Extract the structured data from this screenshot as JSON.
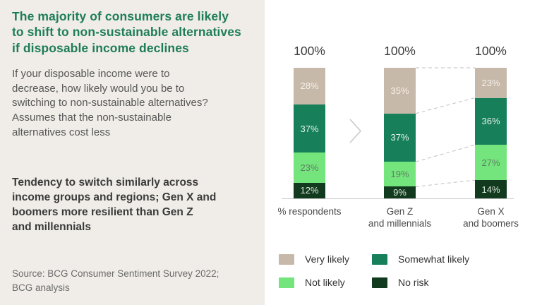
{
  "left_panel": {
    "title": "The majority of consumers are likely\nto shift to non-sustainable alternatives\nif disposable income declines",
    "description": "If your disposable income were to\ndecrease, how likely would you be to\nswitching to non-sustainable alternatives?\nAssumes that the non-sustainable\nalternatives cost less",
    "highlight": "Tendency to switch similarly across\nincome groups and regions; Gen X and\nboomers more resilient than Gen Z\nand millennials",
    "source": "Source: BCG Consumer Sentiment Survey 2022;\nBCG analysis"
  },
  "chart_data": {
    "type": "bar",
    "stacked": true,
    "unit": "%",
    "total_label": "100%",
    "categories": [
      "% respondents",
      "Gen Z\nand millennials",
      "Gen X\nand boomers"
    ],
    "series": [
      {
        "name": "Very likely",
        "color": "#C7B9A9",
        "label_color": "#F5F0E9",
        "values": [
          28,
          35,
          23
        ]
      },
      {
        "name": "Somewhat likely",
        "color": "#17805B",
        "label_color": "#E6F1EA",
        "values": [
          37,
          37,
          36
        ]
      },
      {
        "name": "Not likely",
        "color": "#74E57C",
        "label_color": "#5F7F68",
        "values": [
          23,
          19,
          27
        ]
      },
      {
        "name": "No risk",
        "color": "#123A1E",
        "label_color": "#DCE8DD",
        "values": [
          12,
          9,
          14
        ]
      }
    ],
    "ylim": [
      0,
      100
    ],
    "grid": false,
    "legend_position": "bottom",
    "annotations": {
      "comparison_chevron_between": [
        "% respondents",
        "Gen Z and millennials"
      ],
      "dashed_connectors_between": [
        "Gen Z and millennials",
        "Gen X and boomers"
      ]
    }
  },
  "colors": {
    "left_panel_bg": "#F0EDE8",
    "chart_panel_bg": "#FFFFFF",
    "title_green": "#1E7D58",
    "axis_line": "#C9C9C9",
    "connector_gray": "#BFBFBF"
  }
}
